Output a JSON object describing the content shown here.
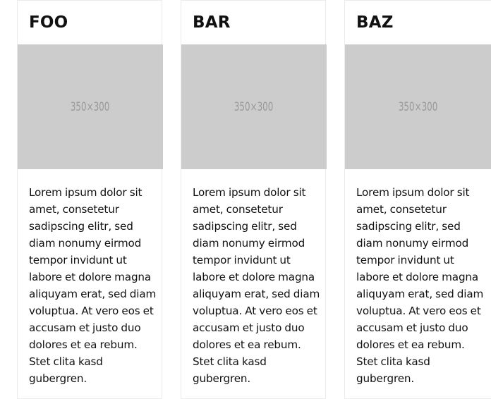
{
  "cards": [
    {
      "title": "FOO",
      "image_label": "350×300",
      "body": "Lorem ipsum dolor sit amet, consetetur sadipscing elitr, sed diam nonumy eirmod tempor invidunt ut labore et dolore magna aliquyam erat, sed diam voluptua. At vero eos et accusam et justo duo dolores et ea rebum. Stet clita kasd gubergren."
    },
    {
      "title": "BAR",
      "image_label": "350×300",
      "body": "Lorem ipsum dolor sit amet, consetetur sadipscing elitr, sed diam nonumy eirmod tempor invidunt ut labore et dolore magna aliquyam erat, sed diam voluptua. At vero eos et accusam et justo duo dolores et ea rebum. Stet clita kasd gubergren."
    },
    {
      "title": "BAZ",
      "image_label": "350×300",
      "body": "Lorem ipsum dolor sit amet, consetetur sadipscing elitr, sed diam nonumy eirmod tempor invidunt ut labore et dolore magna aliquyam erat, sed diam voluptua. At vero eos et accusam et justo duo dolores et ea rebum. Stet clita kasd gubergren."
    }
  ],
  "colors": {
    "placeholder_bg": "#cccccc",
    "placeholder_text": "#999999",
    "card_border": "#ebebeb",
    "text": "#111111"
  }
}
